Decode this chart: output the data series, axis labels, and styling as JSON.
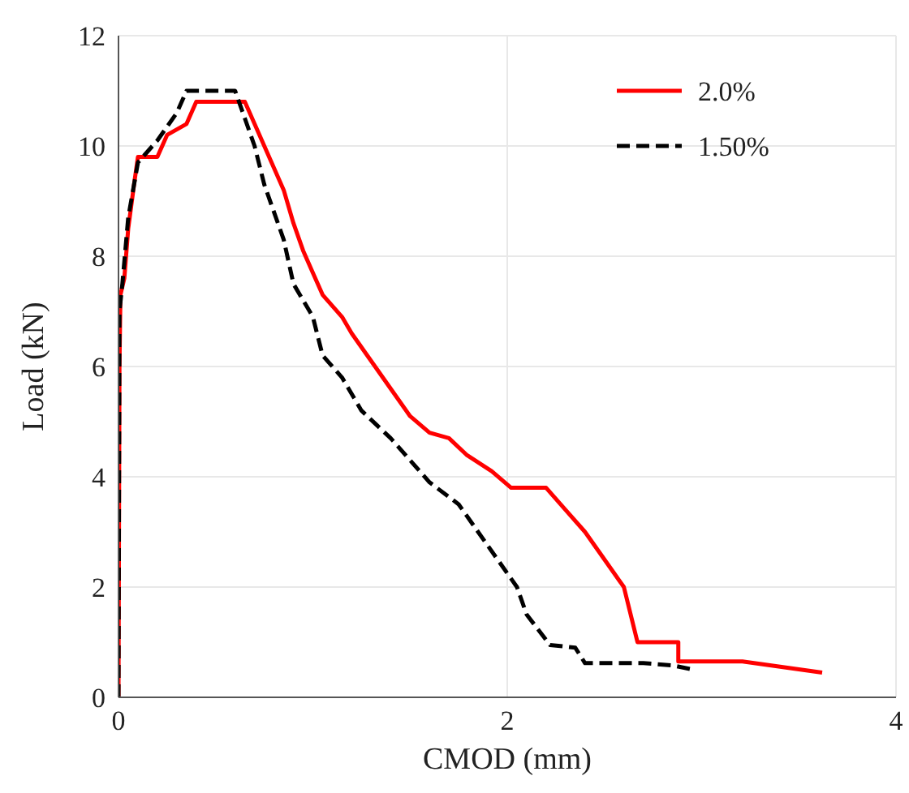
{
  "chart_data": {
    "type": "line",
    "xlabel": "CMOD (mm)",
    "ylabel": "Load (kN)",
    "xlim": [
      0,
      4
    ],
    "xticks": [
      0,
      2,
      4
    ],
    "ylim": [
      0,
      12
    ],
    "yticks": [
      0,
      2,
      4,
      6,
      8,
      10,
      12
    ],
    "grid": true,
    "legend": "top right",
    "series": [
      {
        "name": "2.0%",
        "color": "#ff0000",
        "line_style": "solid",
        "x": [
          0,
          0.005,
          0.01,
          0.03,
          0.05,
          0.08,
          0.1,
          0.2,
          0.25,
          0.35,
          0.4,
          0.65,
          0.7,
          0.75,
          0.8,
          0.85,
          0.9,
          0.95,
          1.0,
          1.05,
          1.15,
          1.2,
          1.3,
          1.4,
          1.5,
          1.6,
          1.7,
          1.79,
          1.92,
          2.02,
          2.2,
          2.3,
          2.4,
          2.5,
          2.6,
          2.67,
          2.88,
          2.88,
          3.21,
          3.62
        ],
        "values": [
          0,
          6,
          7.3,
          7.6,
          8.5,
          9.3,
          9.8,
          9.8,
          10.2,
          10.4,
          10.8,
          10.8,
          10.4,
          10,
          9.6,
          9.2,
          8.6,
          8.1,
          7.7,
          7.3,
          6.9,
          6.6,
          6.1,
          5.6,
          5.1,
          4.8,
          4.7,
          4.4,
          4.1,
          3.8,
          3.8,
          3.4,
          3.0,
          2.5,
          2.0,
          1.0,
          1.0,
          0.65,
          0.65,
          0.45
        ]
      },
      {
        "name": "1.50%",
        "color": "#000000",
        "line_style": "dashed",
        "x": [
          0,
          0.005,
          0.02,
          0.05,
          0.1,
          0.2,
          0.3,
          0.35,
          0.6,
          0.65,
          0.7,
          0.75,
          0.85,
          0.9,
          1.0,
          1.05,
          1.15,
          1.25,
          1.4,
          1.5,
          1.6,
          1.75,
          1.85,
          1.95,
          2.05,
          2.1,
          2.22,
          2.35,
          2.4,
          2.7,
          2.85,
          2.96
        ],
        "values": [
          0,
          7,
          7.5,
          8.7,
          9.7,
          10.1,
          10.6,
          11,
          11,
          10.5,
          10,
          9.3,
          8.3,
          7.5,
          6.9,
          6.2,
          5.8,
          5.2,
          4.7,
          4.3,
          3.9,
          3.5,
          3.0,
          2.5,
          2.0,
          1.5,
          0.95,
          0.9,
          0.62,
          0.62,
          0.58,
          0.5
        ]
      }
    ]
  }
}
